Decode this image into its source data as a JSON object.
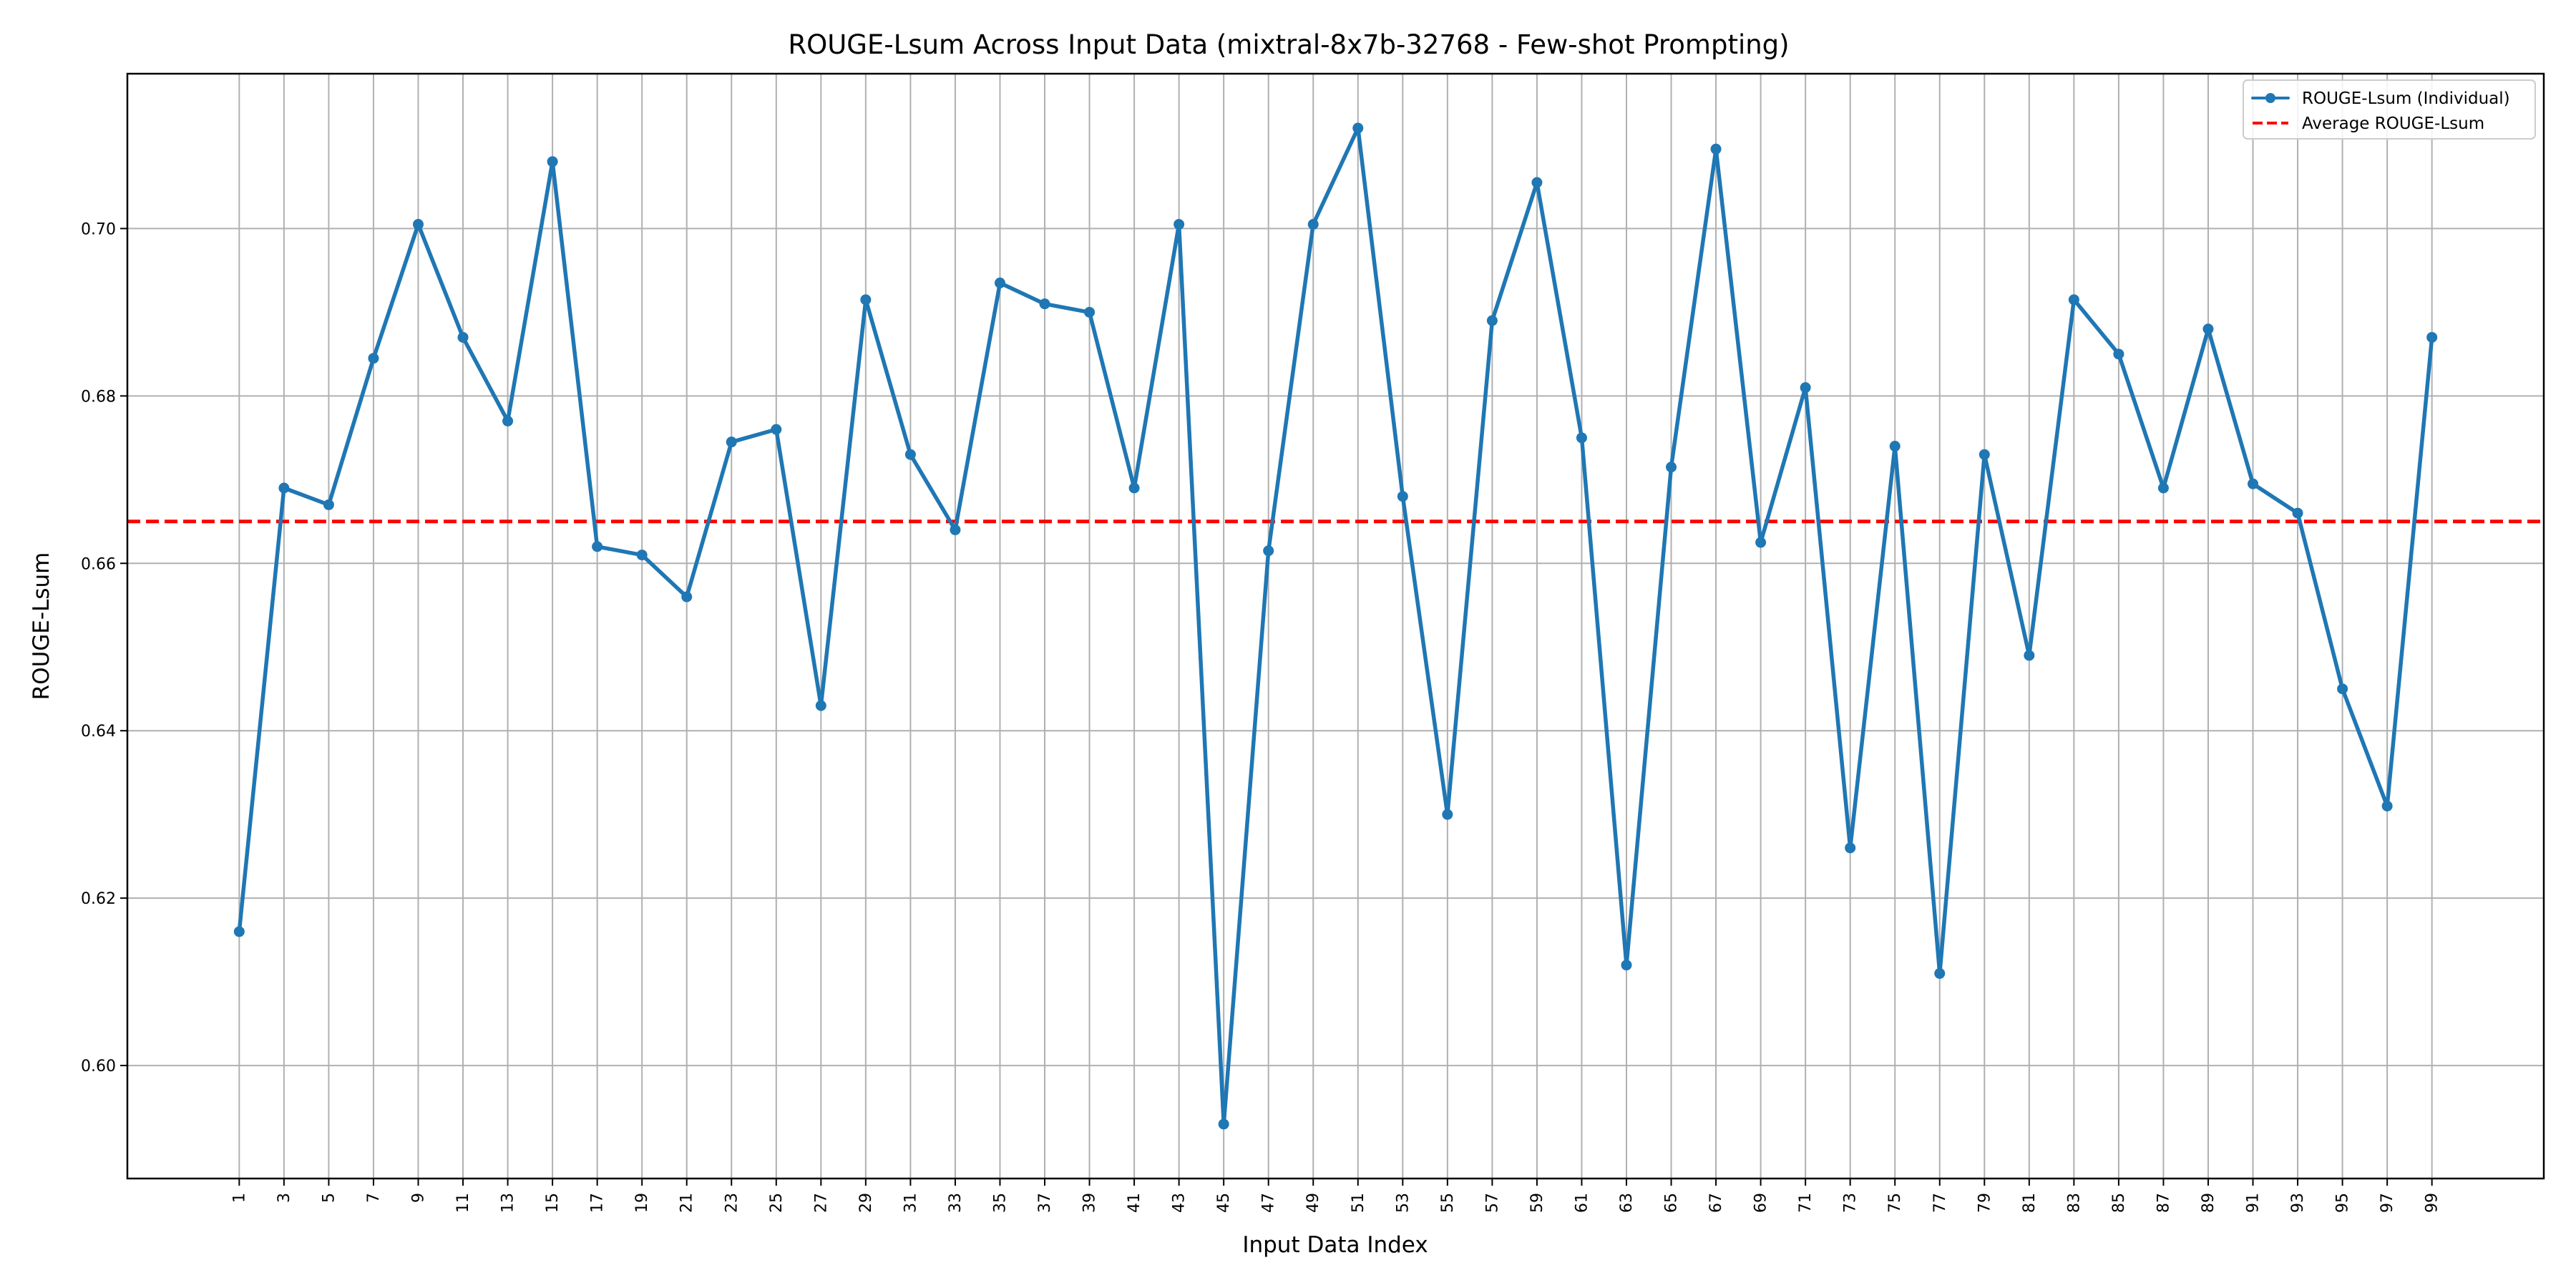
{
  "chart_data": {
    "type": "line",
    "title": "ROUGE-Lsum Across Input Data (mixtral-8x7b-32768 - Few-shot Prompting)",
    "xlabel": "Input Data Index",
    "ylabel": "ROUGE-Lsum",
    "x_ticks": [
      1,
      3,
      5,
      7,
      9,
      11,
      13,
      15,
      17,
      19,
      21,
      23,
      25,
      27,
      29,
      31,
      33,
      35,
      37,
      39,
      41,
      43,
      45,
      47,
      49,
      51,
      53,
      55,
      57,
      59,
      61,
      63,
      65,
      67,
      69,
      71,
      73,
      75,
      77,
      79,
      81,
      83,
      85,
      87,
      89,
      91,
      93,
      95,
      97,
      99
    ],
    "y_ticks": [
      0.6,
      0.62,
      0.64,
      0.66,
      0.68,
      0.7
    ],
    "y_tick_labels": [
      "0.60",
      "0.62",
      "0.64",
      "0.66",
      "0.68",
      "0.70"
    ],
    "xlim": [
      -4,
      104
    ],
    "ylim": [
      0.5865,
      0.7185
    ],
    "grid": true,
    "legend_position": "top-right",
    "series": [
      {
        "name": "ROUGE-Lsum (Individual)",
        "color": "#1f77b4",
        "style": "solid-line-with-markers",
        "x": [
          1,
          3,
          5,
          7,
          9,
          11,
          13,
          15,
          17,
          19,
          21,
          23,
          25,
          27,
          29,
          31,
          33,
          35,
          37,
          39,
          41,
          43,
          45,
          47,
          49,
          51,
          53,
          55,
          57,
          59,
          61,
          63,
          65,
          67,
          69,
          71,
          73,
          75,
          77,
          79,
          81,
          83,
          85,
          87,
          89,
          91,
          93,
          95,
          97,
          99
        ],
        "values": [
          0.616,
          0.669,
          0.667,
          0.6845,
          0.7005,
          0.687,
          0.677,
          0.708,
          0.662,
          0.661,
          0.656,
          0.6745,
          0.676,
          0.643,
          0.6915,
          0.673,
          0.664,
          0.6935,
          0.691,
          0.69,
          0.669,
          0.7005,
          0.593,
          0.6615,
          0.7005,
          0.712,
          0.668,
          0.63,
          0.689,
          0.7055,
          0.675,
          0.612,
          0.6715,
          0.7095,
          0.6625,
          0.681,
          0.626,
          0.674,
          0.611,
          0.673,
          0.649,
          0.6915,
          0.685,
          0.669,
          0.688,
          0.6695,
          0.666,
          0.645,
          0.631,
          0.687
        ]
      },
      {
        "name": "Average ROUGE-Lsum",
        "color": "#ff0000",
        "style": "dashed-line",
        "value": 0.665
      }
    ]
  }
}
